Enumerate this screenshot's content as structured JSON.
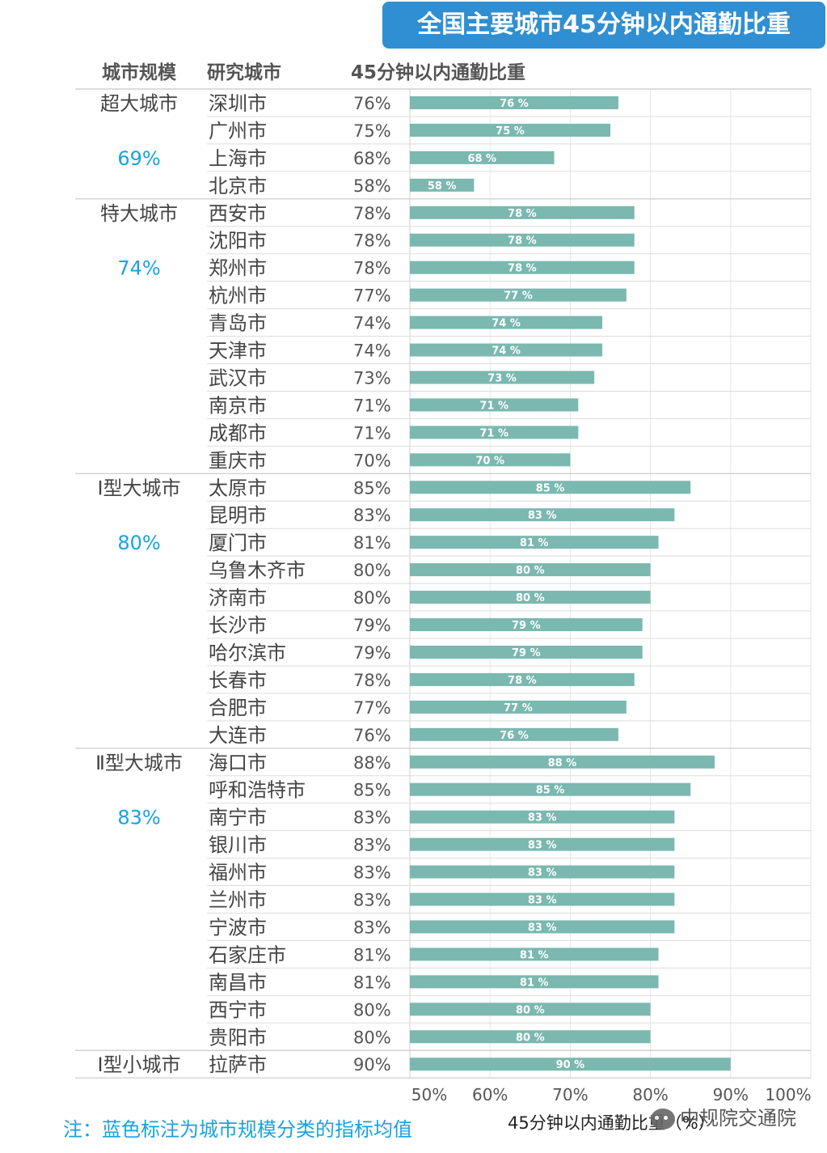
{
  "title": "全国主要城市45分钟以内通勤比重",
  "headers": {
    "scale": "城市规模",
    "city": "研究城市",
    "value": "45分钟以内通勤比重"
  },
  "note": "注：蓝色标注为城市规模分类的指标均值",
  "watermark": "中规院交通院",
  "colors": {
    "bar": "#7ab8b0",
    "accent": "#17a3e0",
    "title_bg": "#2f8fd2"
  },
  "chart_data": {
    "type": "bar",
    "orientation": "horizontal",
    "xlabel": "45分钟以内通勤比重（%）",
    "xlim": [
      50,
      100
    ],
    "xticks": [
      "50%",
      "60%",
      "70%",
      "80%",
      "90%",
      "100%"
    ],
    "grid": true,
    "groups": [
      {
        "name": "超大城市",
        "avg": "69%",
        "count": 4
      },
      {
        "name": "特大城市",
        "avg": "74%",
        "count": 10
      },
      {
        "name": "Ⅰ型大城市",
        "avg": "80%",
        "count": 10
      },
      {
        "name": "Ⅱ型大城市",
        "avg": "83%",
        "count": 11
      },
      {
        "name": "Ⅰ型小城市",
        "avg": "",
        "count": 1
      }
    ],
    "cities": [
      {
        "name": "深圳市",
        "value": 76,
        "label": "76%",
        "bar_label": "76 %"
      },
      {
        "name": "广州市",
        "value": 75,
        "label": "75%",
        "bar_label": "75 %"
      },
      {
        "name": "上海市",
        "value": 68,
        "label": "68%",
        "bar_label": "68 %"
      },
      {
        "name": "北京市",
        "value": 58,
        "label": "58%",
        "bar_label": "58 %"
      },
      {
        "name": "西安市",
        "value": 78,
        "label": "78%",
        "bar_label": "78 %"
      },
      {
        "name": "沈阳市",
        "value": 78,
        "label": "78%",
        "bar_label": "78 %"
      },
      {
        "name": "郑州市",
        "value": 78,
        "label": "78%",
        "bar_label": "78 %"
      },
      {
        "name": "杭州市",
        "value": 77,
        "label": "77%",
        "bar_label": "77 %"
      },
      {
        "name": "青岛市",
        "value": 74,
        "label": "74%",
        "bar_label": "74 %"
      },
      {
        "name": "天津市",
        "value": 74,
        "label": "74%",
        "bar_label": "74 %"
      },
      {
        "name": "武汉市",
        "value": 73,
        "label": "73%",
        "bar_label": "73 %"
      },
      {
        "name": "南京市",
        "value": 71,
        "label": "71%",
        "bar_label": "71 %"
      },
      {
        "name": "成都市",
        "value": 71,
        "label": "71%",
        "bar_label": "71 %"
      },
      {
        "name": "重庆市",
        "value": 70,
        "label": "70%",
        "bar_label": "70 %"
      },
      {
        "name": "太原市",
        "value": 85,
        "label": "85%",
        "bar_label": "85 %"
      },
      {
        "name": "昆明市",
        "value": 83,
        "label": "83%",
        "bar_label": "83 %"
      },
      {
        "name": "厦门市",
        "value": 81,
        "label": "81%",
        "bar_label": "81 %"
      },
      {
        "name": "乌鲁木齐市",
        "value": 80,
        "label": "80%",
        "bar_label": "80 %"
      },
      {
        "name": "济南市",
        "value": 80,
        "label": "80%",
        "bar_label": "80 %"
      },
      {
        "name": "长沙市",
        "value": 79,
        "label": "79%",
        "bar_label": "79 %"
      },
      {
        "name": "哈尔滨市",
        "value": 79,
        "label": "79%",
        "bar_label": "79 %"
      },
      {
        "name": "长春市",
        "value": 78,
        "label": "78%",
        "bar_label": "78 %"
      },
      {
        "name": "合肥市",
        "value": 77,
        "label": "77%",
        "bar_label": "77 %"
      },
      {
        "name": "大连市",
        "value": 76,
        "label": "76%",
        "bar_label": "76 %"
      },
      {
        "name": "海口市",
        "value": 88,
        "label": "88%",
        "bar_label": "88 %"
      },
      {
        "name": "呼和浩特市",
        "value": 85,
        "label": "85%",
        "bar_label": "85 %"
      },
      {
        "name": "南宁市",
        "value": 83,
        "label": "83%",
        "bar_label": "83 %"
      },
      {
        "name": "银川市",
        "value": 83,
        "label": "83%",
        "bar_label": "83 %"
      },
      {
        "name": "福州市",
        "value": 83,
        "label": "83%",
        "bar_label": "83 %"
      },
      {
        "name": "兰州市",
        "value": 83,
        "label": "83%",
        "bar_label": "83 %"
      },
      {
        "name": "宁波市",
        "value": 83,
        "label": "83%",
        "bar_label": "83 %"
      },
      {
        "name": "石家庄市",
        "value": 81,
        "label": "81%",
        "bar_label": "81 %"
      },
      {
        "name": "南昌市",
        "value": 81,
        "label": "81%",
        "bar_label": "81 %"
      },
      {
        "name": "西宁市",
        "value": 80,
        "label": "80%",
        "bar_label": "80 %"
      },
      {
        "name": "贵阳市",
        "value": 80,
        "label": "80%",
        "bar_label": "80 %"
      },
      {
        "name": "拉萨市",
        "value": 90,
        "label": "90%",
        "bar_label": "90 %"
      }
    ]
  }
}
